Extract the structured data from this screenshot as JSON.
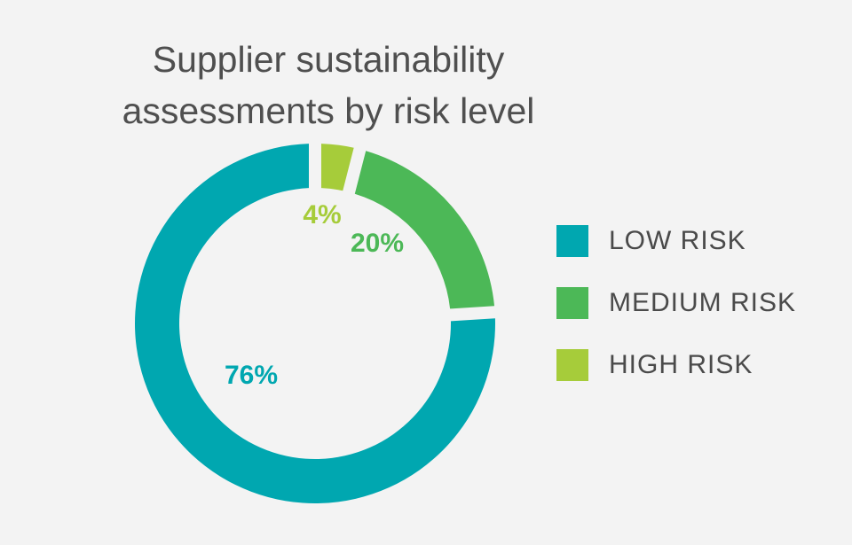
{
  "chart_data": {
    "type": "pie",
    "variant": "donut",
    "title_lines": [
      "Supplier sustainability",
      "assessments by risk level"
    ],
    "categories": [
      "LOW RISK",
      "MEDIUM RISK",
      "HIGH RISK"
    ],
    "values": [
      76,
      20,
      4
    ],
    "value_labels": [
      "76%",
      "20%",
      "4%"
    ],
    "colors": [
      "#00a7b0",
      "#4cb857",
      "#a6cc3a"
    ],
    "legend_position": "right"
  }
}
